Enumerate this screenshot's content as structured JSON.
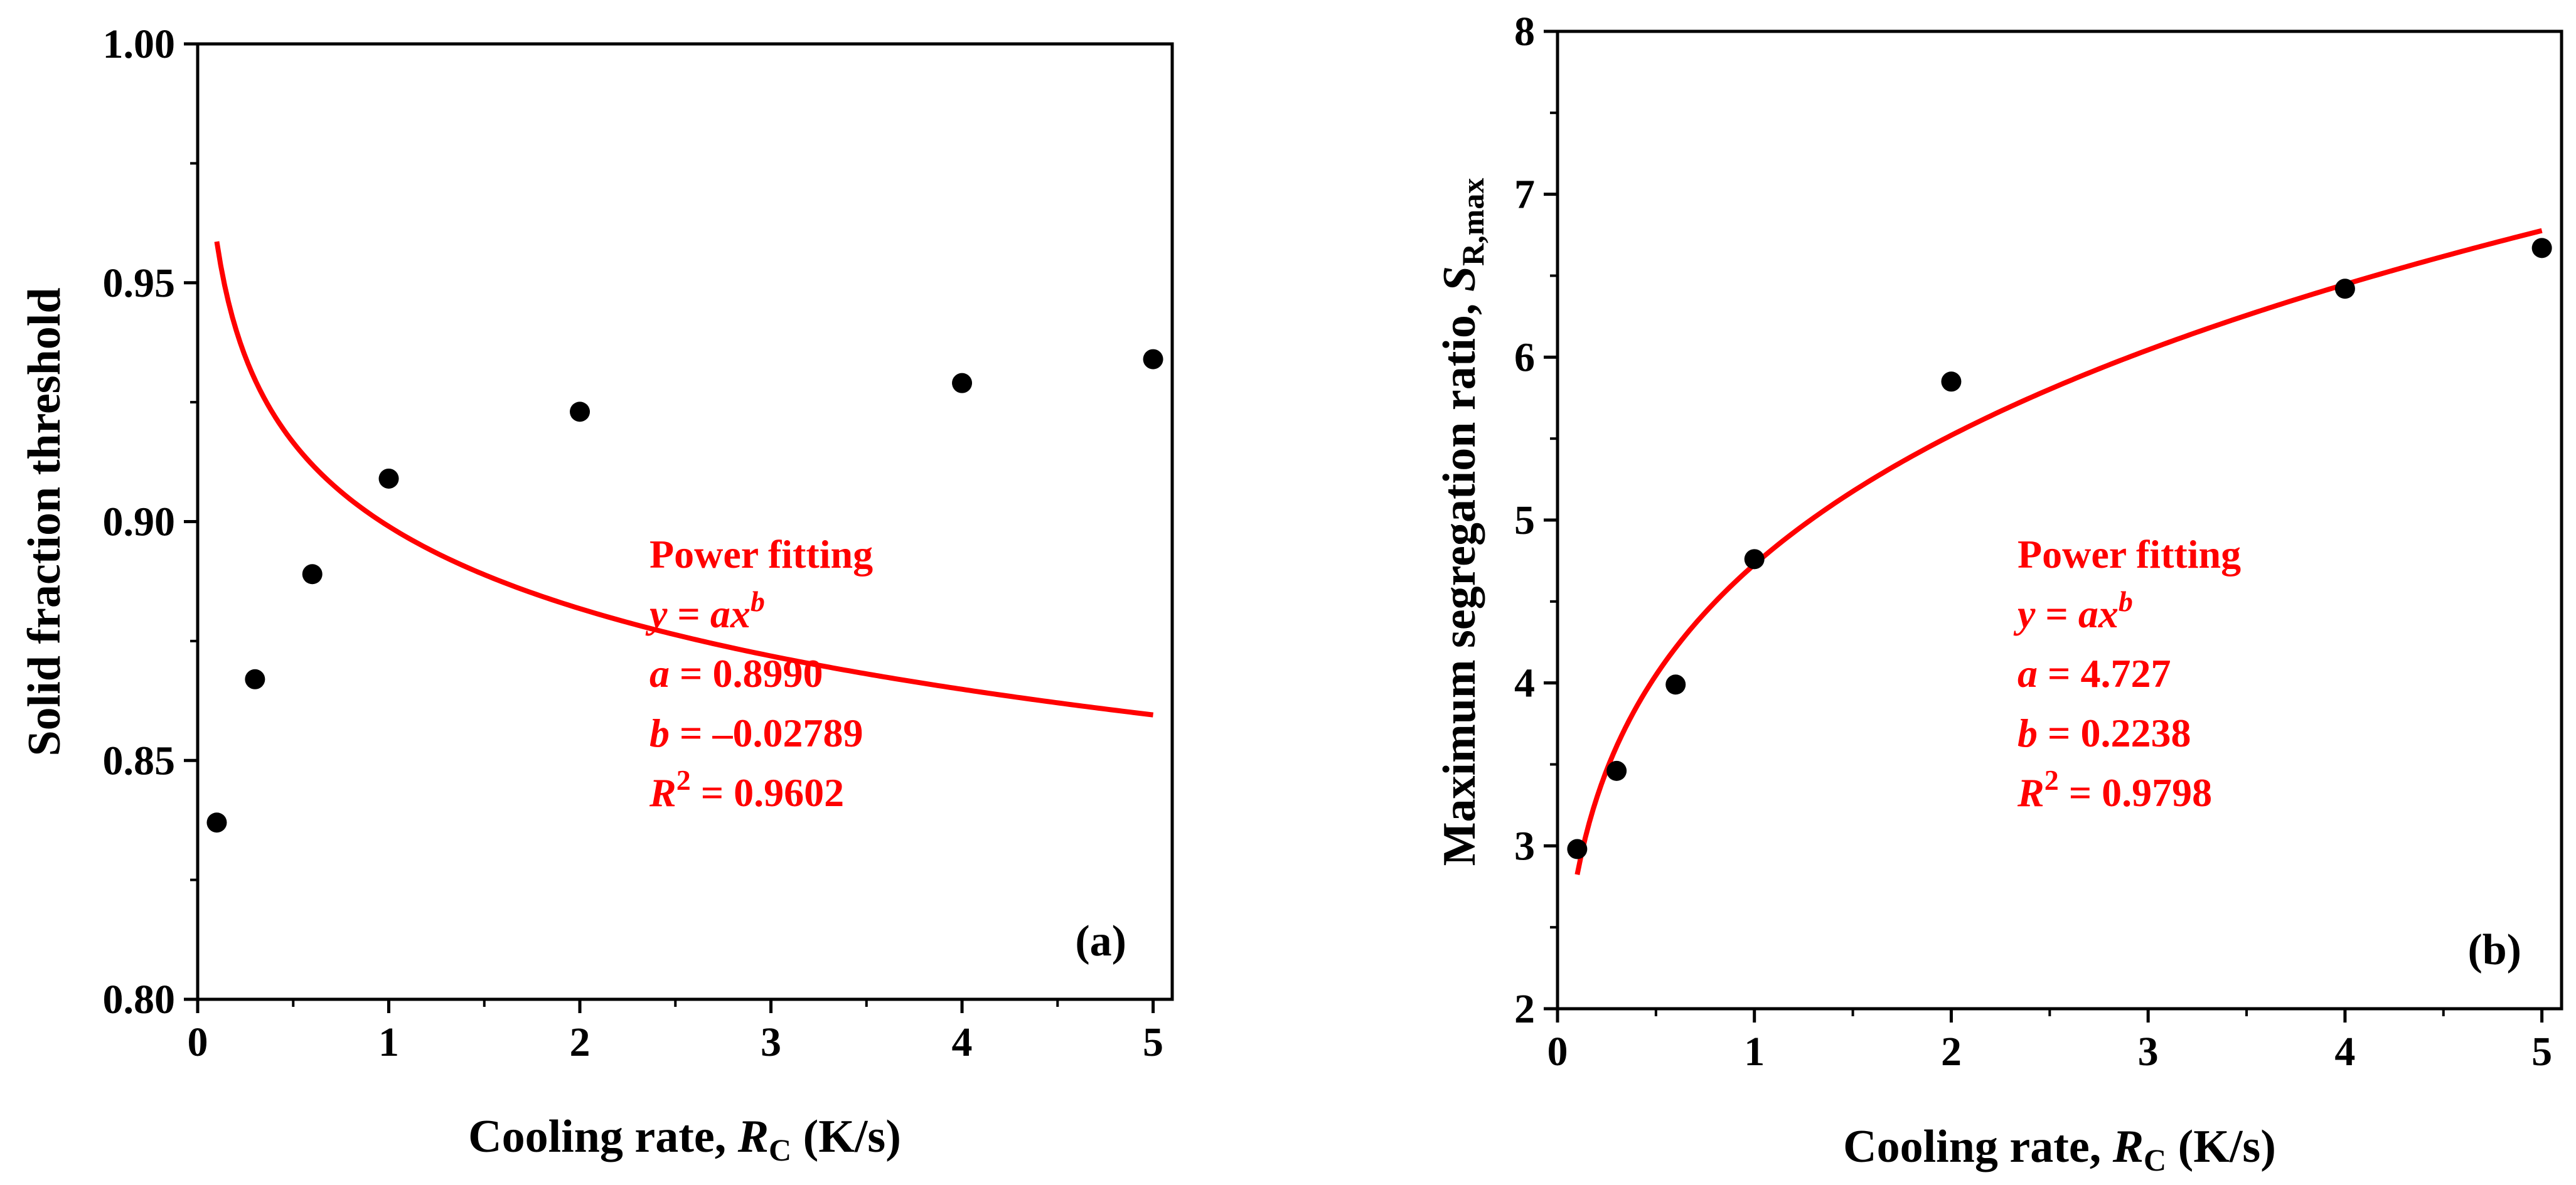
{
  "chart_data": [
    {
      "type": "scatter",
      "panel_label": "(a)",
      "xlabel": {
        "prefix": "Cooling rate, ",
        "var": "R",
        "sub": "C",
        "suffix": " (K/s)"
      },
      "ylabel": "Solid fraction threshold",
      "xlim": [
        0,
        5.1
      ],
      "ylim": [
        0.8,
        1.0
      ],
      "xticks": [
        0,
        1,
        2,
        3,
        4,
        5
      ],
      "xtick_labels": [
        "0",
        "1",
        "2",
        "3",
        "4",
        "5"
      ],
      "yticks": [
        0.8,
        0.85,
        0.9,
        0.95,
        1.0
      ],
      "ytick_labels": [
        "0.80",
        "0.85",
        "0.90",
        "0.95",
        "1.00"
      ],
      "series": [
        {
          "name": "data",
          "x": [
            0.1,
            0.3,
            0.6,
            1,
            2,
            4,
            5
          ],
          "y": [
            0.837,
            0.867,
            0.889,
            0.909,
            0.923,
            0.929,
            0.934
          ],
          "color": "#000000"
        },
        {
          "name": "Power fitting",
          "type": "line",
          "a": 0.899,
          "b": -0.02789,
          "x_range": [
            0.1,
            5
          ],
          "color": "#ff0000"
        }
      ],
      "annotation": {
        "title": "Power fitting",
        "eq_y": "y",
        "eq_eq": " = ",
        "eq_ax": "ax",
        "eq_b": "b",
        "a_var": "a",
        "a_val": " = 0.8990",
        "b_var": "b",
        "b_val": " = –0.02789",
        "r_var": "R",
        "r_sup": "2",
        "r_val": " = 0.9602"
      }
    },
    {
      "type": "scatter",
      "panel_label": "(b)",
      "xlabel": {
        "prefix": "Cooling rate, ",
        "var": "R",
        "sub": "C",
        "suffix": " (K/s)"
      },
      "ylabel": {
        "prefix": "Maximum segregation ratio, ",
        "var": "S",
        "sub": "R,max"
      },
      "xlim": [
        0,
        5.1
      ],
      "ylim": [
        2,
        8
      ],
      "xticks": [
        0,
        1,
        2,
        3,
        4,
        5
      ],
      "xtick_labels": [
        "0",
        "1",
        "2",
        "3",
        "4",
        "5"
      ],
      "yticks": [
        2,
        3,
        4,
        5,
        6,
        7,
        8
      ],
      "ytick_labels": [
        "2",
        "3",
        "4",
        "5",
        "6",
        "7",
        "8"
      ],
      "series": [
        {
          "name": "data",
          "x": [
            0.1,
            0.3,
            0.6,
            1,
            2,
            4,
            5
          ],
          "y": [
            2.98,
            3.46,
            3.99,
            4.76,
            5.85,
            6.42,
            6.67
          ],
          "color": "#000000"
        },
        {
          "name": "Power fitting",
          "type": "line",
          "a": 4.727,
          "b": 0.2238,
          "x_range": [
            0.1,
            5
          ],
          "color": "#ff0000"
        }
      ],
      "annotation": {
        "title": "Power fitting",
        "eq_y": "y",
        "eq_eq": " = ",
        "eq_ax": "ax",
        "eq_b": "b",
        "a_var": "a",
        "a_val": " = 4.727",
        "b_var": "b",
        "b_val": " = 0.2238",
        "r_var": "R",
        "r_sup": "2",
        "r_val": " = 0.9798"
      }
    }
  ]
}
